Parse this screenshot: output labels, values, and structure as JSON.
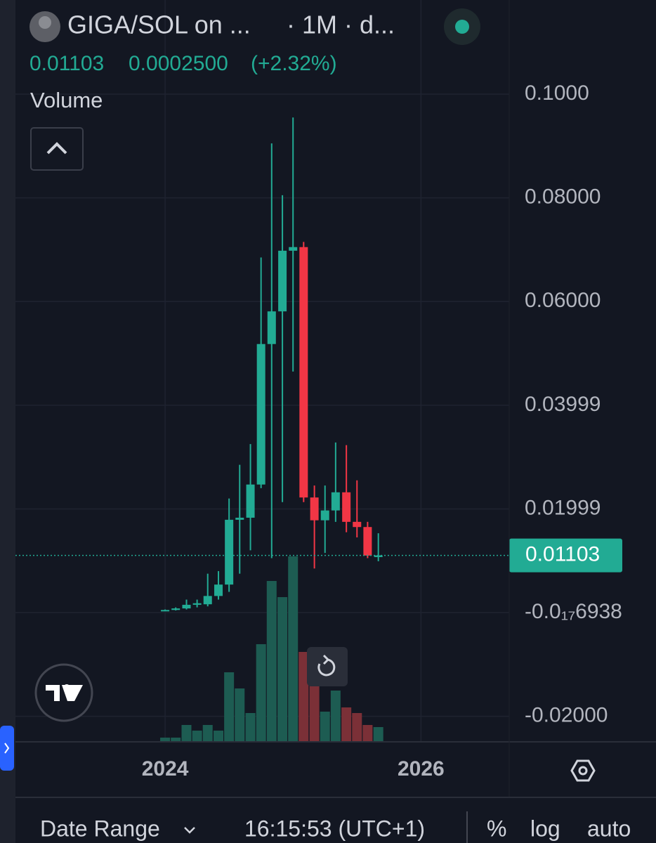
{
  "header": {
    "symbol": "GIGA/SOL on ...",
    "interval": "· 1M · d...",
    "price": "0.01103",
    "change": "0.0002500",
    "change_pct": "(+2.32%)",
    "indicator": "Volume"
  },
  "footer": {
    "date_range": "Date Range",
    "clock": "16:15:53 (UTC+1)",
    "percent": "%",
    "log": "log",
    "auto": "auto"
  },
  "chart_data": {
    "type": "candlestick",
    "x": [
      2024,
      2024.083,
      2024.167,
      2024.25,
      2024.333,
      2024.417,
      2024.5,
      2024.583,
      2024.667,
      2024.75,
      2024.833,
      2024.917,
      2025,
      2025.083,
      2025.167,
      2025.25,
      2025.333,
      2025.417,
      2025.5,
      2025.583,
      2025.667
    ],
    "open": [
      0.0004,
      0.0005,
      0.0008,
      0.0015,
      0.0016,
      0.0032,
      0.0054,
      0.0179,
      0.0183,
      0.0247,
      0.0518,
      0.0581,
      0.0698,
      0.0705,
      0.0222,
      0.0178,
      0.0197,
      0.0232,
      0.0175,
      0.0165,
      0.0107
    ],
    "high": [
      0.0006,
      0.001,
      0.0025,
      0.0025,
      0.0075,
      0.008,
      0.022,
      0.0285,
      0.0325,
      0.0685,
      0.0905,
      0.0805,
      0.0955,
      0.0715,
      0.0245,
      0.0245,
      0.0328,
      0.0323,
      0.0255,
      0.0175,
      0.0153
    ],
    "low": [
      0.0003,
      0.0004,
      0.0006,
      0.001,
      0.0012,
      0.0025,
      0.004,
      0.0075,
      0.012,
      0.024,
      0.0105,
      0.0213,
      0.0465,
      0.0213,
      0.0085,
      0.0115,
      0.0175,
      0.0155,
      0.0145,
      0.0105,
      0.0099
    ],
    "close": [
      0.0005,
      0.0008,
      0.0015,
      0.0018,
      0.0032,
      0.0054,
      0.0179,
      0.0183,
      0.0247,
      0.0518,
      0.0581,
      0.0698,
      0.0705,
      0.0222,
      0.0178,
      0.0197,
      0.0232,
      0.0175,
      0.0165,
      0.011,
      0.01103
    ],
    "volume": [
      5,
      5,
      23,
      15,
      23,
      15,
      98,
      75,
      40,
      138,
      228,
      205,
      263,
      127,
      85,
      42,
      72,
      48,
      40,
      23,
      20
    ],
    "up_color": "#22ab94",
    "down_color": "#f23645",
    "volume_up_color": "#1d5c52",
    "volume_down_color": "#7b3037",
    "last_price": 0.01103,
    "ylim": [
      -0.0248,
      0.1019
    ],
    "yticks": [
      {
        "value": 0.1,
        "label": "0.1000"
      },
      {
        "value": 0.08,
        "label": "0.08000"
      },
      {
        "value": 0.06,
        "label": "0.06000"
      },
      {
        "value": 0.03999,
        "label": "0.03999"
      },
      {
        "value": 0.01999,
        "label": "0.01999"
      },
      {
        "value": -6.938e-18,
        "label": "-0.0₁₇6938"
      },
      {
        "value": -0.02,
        "label": "-0.02000"
      }
    ],
    "xlim": [
      2022.83,
      2026.69
    ],
    "xticks": [
      2024,
      2026
    ],
    "vlim": [
      0,
      935
    ],
    "grid": true
  }
}
